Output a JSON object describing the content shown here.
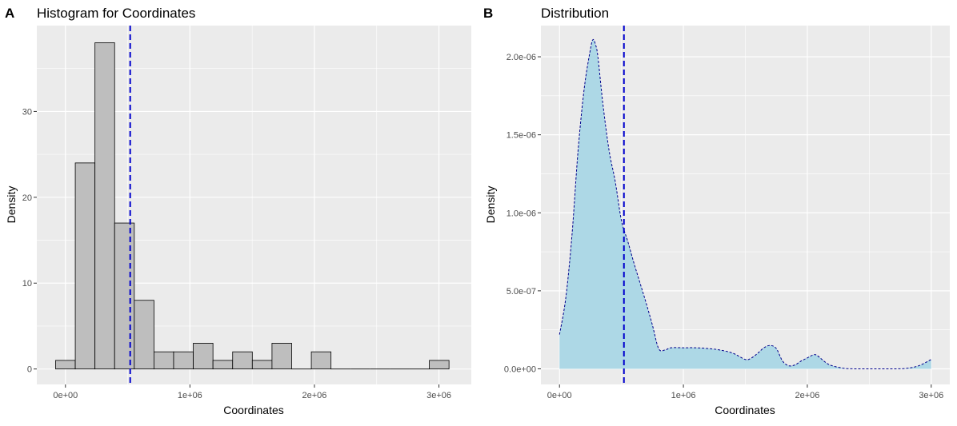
{
  "chart_data": [
    {
      "panel": "A",
      "type": "bar",
      "title": "Histogram for Coordinates",
      "xlabel": "Coordinates",
      "ylabel": "Density",
      "xlim": [
        -230000,
        3260000
      ],
      "ylim": [
        -1.8,
        40.0
      ],
      "xticks": [
        0,
        1000000,
        2000000,
        3000000
      ],
      "xtick_labels": [
        "0e+00",
        "1e+06",
        "2e+06",
        "3e+06"
      ],
      "yticks": [
        0,
        10,
        20,
        30
      ],
      "ytick_labels": [
        "0",
        "10",
        "20",
        "30"
      ],
      "bin_width": 158000,
      "bin_centers": [
        0,
        158000,
        316000,
        474000,
        632000,
        790000,
        948000,
        1106000,
        1264000,
        1422000,
        1580000,
        1738000,
        1896000,
        2054000,
        2212000,
        2370000,
        2528000,
        2686000,
        2844000,
        3002000
      ],
      "values": [
        1,
        24,
        38,
        17,
        8,
        2,
        2,
        3,
        1,
        2,
        1,
        3,
        0,
        2,
        0,
        0,
        0,
        0,
        0,
        1
      ],
      "vline_x": 520000,
      "grid": true,
      "colors": {
        "fill": "#bebebe",
        "outline": "#000000",
        "vline": "#0000cd",
        "panel_bg": "#ebebeb",
        "grid": "#ffffff"
      }
    },
    {
      "panel": "B",
      "type": "area",
      "title": "Distribution",
      "xlabel": "Coordinates",
      "ylabel": "Density",
      "xlim": [
        -150000,
        3150000
      ],
      "ylim": [
        -1e-07,
        2.2e-06
      ],
      "xticks": [
        0,
        1000000,
        2000000,
        3000000
      ],
      "xtick_labels": [
        "0e+00",
        "1e+06",
        "2e+06",
        "3e+06"
      ],
      "yticks": [
        0,
        5e-07,
        1e-06,
        1.5e-06,
        2e-06
      ],
      "ytick_labels": [
        "0.0e+00",
        "5.0e-07",
        "1.0e-06",
        "1.5e-06",
        "2.0e-06"
      ],
      "x": [
        0,
        50000,
        100000,
        150000,
        200000,
        250000,
        270000,
        290000,
        310000,
        350000,
        400000,
        450000,
        500000,
        550000,
        600000,
        650000,
        700000,
        750000,
        800000,
        850000,
        900000,
        1000000,
        1100000,
        1200000,
        1300000,
        1400000,
        1500000,
        1550000,
        1600000,
        1650000,
        1700000,
        1750000,
        1800000,
        1850000,
        1900000,
        1950000,
        2000000,
        2050000,
        2080000,
        2150000,
        2200000,
        2300000,
        2400000,
        2500000,
        2600000,
        2700000,
        2800000,
        2900000,
        3000000
      ],
      "y": [
        2.2e-07,
        4.5e-07,
        8.5e-07,
        1.4e-06,
        1.8e-06,
        2.05e-06,
        2.11e-06,
        2.08e-06,
        2e-06,
        1.7e-06,
        1.4e-06,
        1.2e-06,
        9.5e-07,
        8.2e-07,
        6.8e-07,
        5.5e-07,
        4.2e-07,
        2.8e-07,
        1.3e-07,
        1.2e-07,
        1.35e-07,
        1.35e-07,
        1.35e-07,
        1.3e-07,
        1.2e-07,
        1e-07,
        6e-08,
        7e-08,
        1e-07,
        1.35e-07,
        1.5e-07,
        1.3e-07,
        5e-08,
        2e-08,
        2.5e-08,
        5e-08,
        7e-08,
        9e-08,
        8.5e-08,
        4e-08,
        2e-08,
        3e-09,
        0,
        0,
        0,
        0,
        3e-09,
        2e-08,
        6e-08
      ],
      "vline_x": 520000,
      "grid": true,
      "colors": {
        "fill": "#add8e6",
        "outline": "#00008b",
        "vline": "#0000cd",
        "panel_bg": "#ebebeb",
        "grid": "#ffffff"
      }
    }
  ]
}
